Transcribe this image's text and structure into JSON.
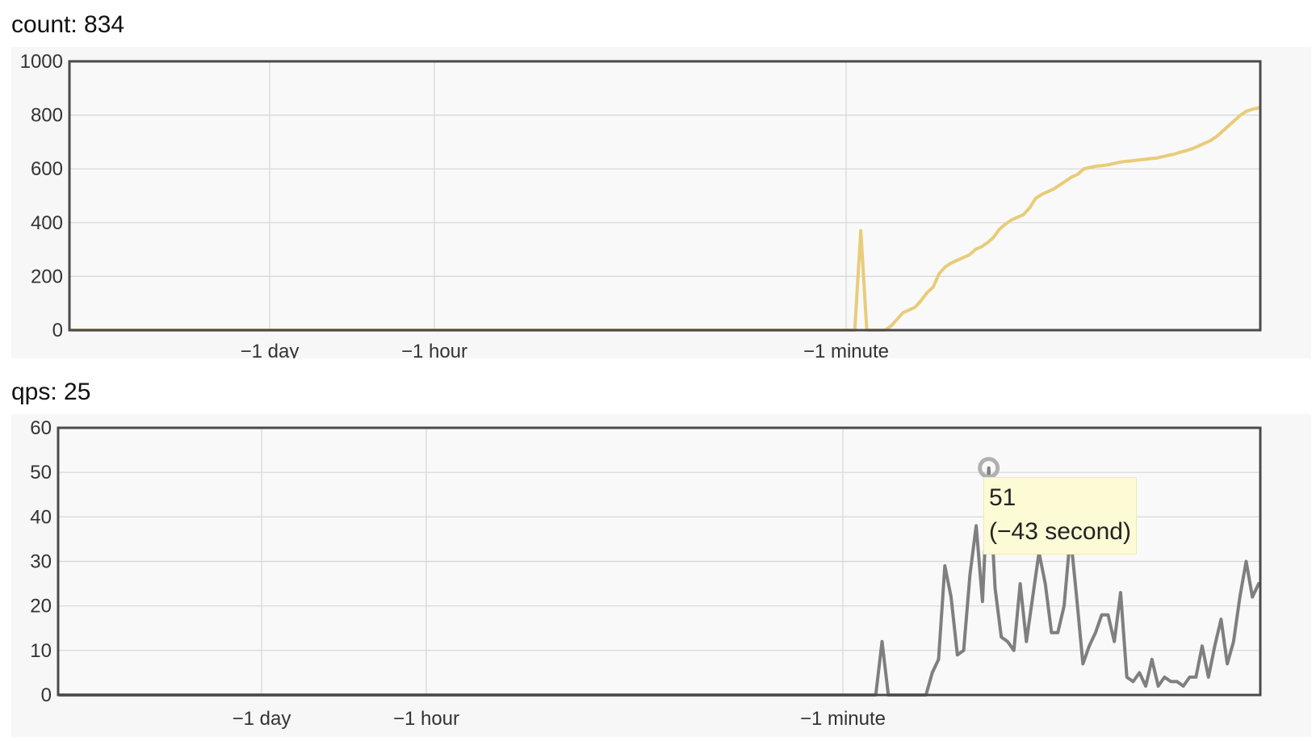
{
  "chart_data": [
    {
      "type": "line",
      "title": "count: 834",
      "ylim": [
        0,
        1000
      ],
      "yticks": [
        0,
        200,
        400,
        600,
        800,
        1000
      ],
      "xticks": [
        "−1 day",
        "−1 hour",
        "−1 minute"
      ],
      "grid": true,
      "color": "#e8cc7a",
      "series": [
        {
          "values": [
            0,
            0,
            0,
            0,
            0,
            0,
            0,
            0,
            0,
            0,
            0,
            0,
            0,
            0,
            0,
            0,
            0,
            0,
            0,
            0,
            0,
            0,
            0,
            0,
            0,
            0,
            0,
            0,
            0,
            0,
            0,
            0,
            0,
            0,
            0,
            0,
            0,
            0,
            0,
            0,
            0,
            0,
            0,
            0,
            0,
            0,
            0,
            0,
            0,
            0,
            0,
            0,
            0,
            0,
            0,
            0,
            0,
            0,
            0,
            0,
            0,
            0,
            0,
            0,
            0,
            0,
            0,
            0,
            0,
            0,
            0,
            0,
            0,
            0,
            0,
            0,
            0,
            0,
            0,
            0,
            0,
            0,
            0,
            0,
            0,
            0,
            0,
            0,
            0,
            0,
            0,
            0,
            0,
            0,
            0,
            0,
            0,
            0,
            0,
            0,
            0,
            0,
            0,
            0,
            0,
            0,
            0,
            0,
            0,
            0,
            0,
            0,
            0,
            0,
            0,
            0,
            0,
            0,
            0,
            0,
            0,
            0,
            0,
            0,
            0,
            0,
            0,
            0,
            0,
            0,
            0,
            370,
            0,
            0,
            0,
            0,
            15,
            40,
            65,
            75,
            85,
            110,
            140,
            160,
            210,
            235,
            250,
            260,
            270,
            280,
            300,
            310,
            325,
            345,
            375,
            395,
            410,
            420,
            430,
            455,
            490,
            505,
            515,
            525,
            540,
            555,
            570,
            580,
            600,
            605,
            610,
            612,
            615,
            620,
            625,
            628,
            630,
            633,
            635,
            638,
            640,
            645,
            650,
            655,
            662,
            668,
            675,
            685,
            695,
            705,
            720,
            740,
            760,
            780,
            800,
            815,
            822,
            827
          ]
        }
      ]
    },
    {
      "type": "line",
      "title": "qps: 25",
      "ylim": [
        0,
        60
      ],
      "yticks": [
        0,
        10,
        20,
        30,
        40,
        50,
        60
      ],
      "xticks": [
        "−1 day",
        "−1 hour",
        "−1 minute"
      ],
      "grid": true,
      "color": "#7f7f7f",
      "tooltip": {
        "value": "51",
        "time": "(−43 second)"
      },
      "series": [
        {
          "values": [
            0,
            0,
            0,
            0,
            0,
            0,
            0,
            0,
            0,
            0,
            0,
            0,
            0,
            0,
            0,
            0,
            0,
            0,
            0,
            0,
            0,
            0,
            0,
            0,
            0,
            0,
            0,
            0,
            0,
            0,
            0,
            0,
            0,
            0,
            0,
            0,
            0,
            0,
            0,
            0,
            0,
            0,
            0,
            0,
            0,
            0,
            0,
            0,
            0,
            0,
            0,
            0,
            0,
            0,
            0,
            0,
            0,
            0,
            0,
            0,
            0,
            0,
            0,
            0,
            0,
            0,
            0,
            0,
            0,
            0,
            0,
            0,
            0,
            0,
            0,
            0,
            0,
            0,
            0,
            0,
            0,
            0,
            0,
            0,
            0,
            0,
            0,
            0,
            0,
            0,
            0,
            0,
            0,
            0,
            0,
            0,
            0,
            0,
            0,
            0,
            0,
            0,
            0,
            0,
            0,
            0,
            0,
            0,
            0,
            0,
            0,
            0,
            0,
            0,
            0,
            0,
            0,
            0,
            0,
            0,
            0,
            0,
            0,
            0,
            0,
            0,
            0,
            0,
            0,
            0,
            0,
            12,
            0,
            0,
            0,
            0,
            0,
            0,
            0,
            5,
            8,
            29,
            22,
            9,
            10,
            27,
            38,
            21,
            51,
            24,
            13,
            12,
            10,
            25,
            12,
            22,
            32,
            25,
            14,
            14,
            20,
            36,
            22,
            7,
            11,
            14,
            18,
            18,
            12,
            23,
            4,
            3,
            5,
            2,
            8,
            2,
            4,
            3,
            3,
            2,
            4,
            4,
            11,
            4,
            11,
            17,
            7,
            12,
            22,
            30,
            22,
            25
          ]
        }
      ]
    }
  ]
}
